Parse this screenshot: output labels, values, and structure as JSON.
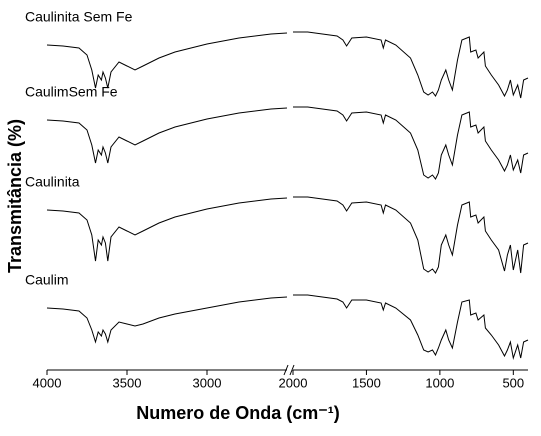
{
  "chart_data": {
    "type": "line",
    "x_label": "Numero de Onda (cm⁻¹)",
    "y_label": "Transmitância (%)",
    "x": [
      4000,
      3900,
      3800,
      3750,
      3720,
      3697,
      3680,
      3660,
      3650,
      3635,
      3620,
      3600,
      3550,
      3500,
      3450,
      3400,
      3300,
      3200,
      3000,
      2800,
      2600,
      2500,
      2000,
      1900,
      1800,
      1700,
      1660,
      1635,
      1600,
      1500,
      1400,
      1385,
      1370,
      1300,
      1200,
      1150,
      1110,
      1080,
      1050,
      1030,
      1010,
      990,
      960,
      940,
      915,
      880,
      850,
      800,
      790,
      755,
      740,
      700,
      690,
      650,
      600,
      560,
      540,
      520,
      500,
      470,
      450,
      430,
      400
    ],
    "x_segments": [
      [
        4000,
        2500
      ],
      [
        2000,
        400
      ]
    ],
    "xticks": [
      4000,
      3500,
      3000,
      2000,
      1500,
      1000,
      500
    ],
    "ylim": [
      0,
      360
    ],
    "series": [
      {
        "name": "Caulinita Sem Fe",
        "color": "#000000",
        "values": [
          325,
          324,
          322,
          315,
          300,
          282,
          295,
          290,
          298,
          292,
          282,
          298,
          308,
          304,
          300,
          304,
          312,
          318,
          326,
          332,
          336,
          337,
          338,
          338,
          336,
          334,
          330,
          324,
          332,
          333,
          330,
          322,
          330,
          325,
          312,
          295,
          278,
          275,
          278,
          274,
          280,
          290,
          300,
          290,
          280,
          310,
          330,
          333,
          318,
          320,
          312,
          318,
          304,
          295,
          285,
          274,
          280,
          290,
          275,
          285,
          272,
          290,
          292
        ]
      },
      {
        "name": "CaulimSem Fe",
        "color": "#000000",
        "values": [
          250,
          249,
          247,
          240,
          225,
          207,
          220,
          215,
          223,
          217,
          207,
          223,
          233,
          229,
          225,
          229,
          237,
          243,
          251,
          257,
          261,
          262,
          263,
          263,
          261,
          259,
          255,
          249,
          257,
          258,
          255,
          247,
          255,
          250,
          237,
          220,
          195,
          192,
          195,
          191,
          197,
          215,
          225,
          215,
          205,
          235,
          255,
          258,
          243,
          245,
          237,
          243,
          229,
          220,
          210,
          199,
          205,
          215,
          200,
          210,
          197,
          215,
          217
        ]
      },
      {
        "name": "Caulinita",
        "color": "#000000",
        "values": [
          160,
          159,
          157,
          150,
          135,
          109,
          130,
          125,
          133,
          127,
          109,
          133,
          143,
          139,
          135,
          139,
          147,
          153,
          161,
          167,
          171,
          172,
          173,
          173,
          171,
          169,
          165,
          159,
          167,
          168,
          165,
          157,
          165,
          160,
          147,
          130,
          101,
          98,
          101,
          97,
          103,
          125,
          135,
          125,
          115,
          145,
          165,
          168,
          153,
          155,
          147,
          153,
          139,
          130,
          120,
          99,
          115,
          125,
          100,
          120,
          97,
          125,
          127
        ]
      },
      {
        "name": "Caulim",
        "color": "#000000",
        "values": [
          62,
          61,
          59,
          52,
          40,
          28,
          38,
          34,
          40,
          36,
          28,
          40,
          48,
          46,
          44,
          46,
          52,
          56,
          62,
          68,
          72,
          73,
          75,
          75,
          73,
          71,
          68,
          62,
          70,
          70,
          67,
          60,
          67,
          62,
          50,
          35,
          20,
          18,
          20,
          15,
          22,
          30,
          40,
          30,
          22,
          48,
          68,
          70,
          55,
          57,
          50,
          55,
          42,
          35,
          25,
          14,
          20,
          28,
          12,
          25,
          12,
          28,
          30
        ]
      }
    ]
  }
}
